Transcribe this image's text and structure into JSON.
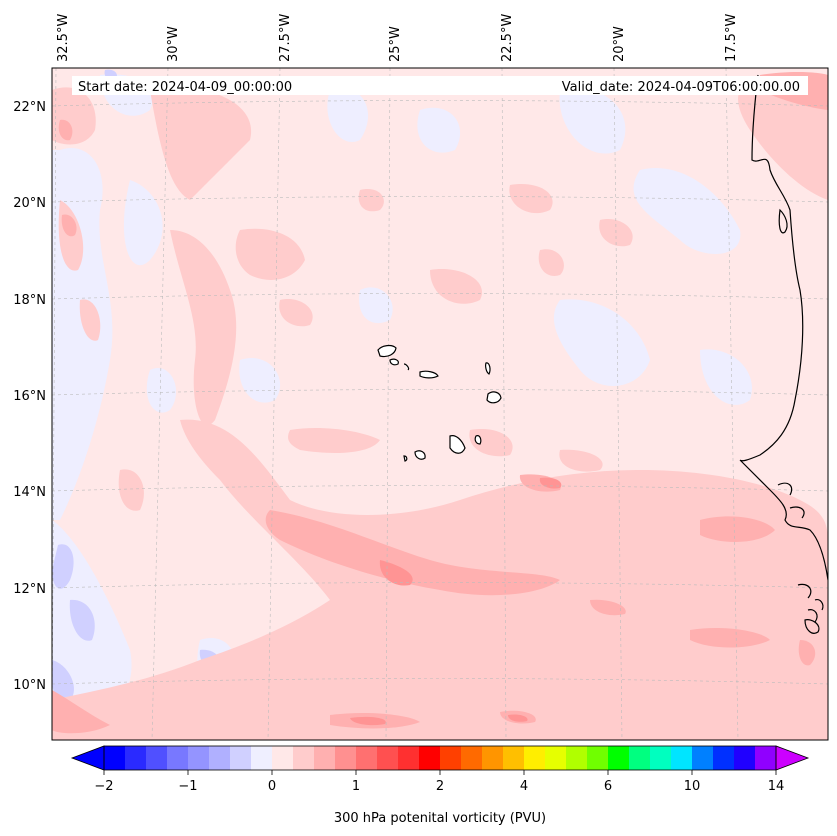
{
  "map": {
    "start_label": "Start date: 2024-04-09_00:00:00",
    "valid_label": "Valid_date: 2024-04-09T06:00:00.00",
    "lon_ticks": [
      "32.5°W",
      "30°W",
      "27.5°W",
      "25°W",
      "22.5°W",
      "20°W",
      "17.5°W"
    ],
    "lat_ticks": [
      "22°N",
      "20°N",
      "18°N",
      "16°N",
      "14°N",
      "12°N",
      "10°N"
    ]
  },
  "colorbar": {
    "title": "300 hPa potenital vorticity (PVU)",
    "tick_labels": [
      "−2",
      "−1",
      "0",
      "1",
      "2",
      "4",
      "6",
      "10",
      "14"
    ],
    "colors": [
      "#0000ff",
      "#2a2aff",
      "#5050ff",
      "#7878ff",
      "#9494ff",
      "#b0b0ff",
      "#d0d0ff",
      "#efefff",
      "#ffe8e8",
      "#ffcccc",
      "#ffb0b0",
      "#ff9090",
      "#ff7070",
      "#ff5050",
      "#ff3030",
      "#ff0000",
      "#ff4000",
      "#ff6a00",
      "#ff9500",
      "#ffbf00",
      "#ffee00",
      "#e6ff00",
      "#b0ff00",
      "#70ff00",
      "#00ff00",
      "#00ff80",
      "#00ffbf",
      "#00e5ff",
      "#0080ff",
      "#0030ff",
      "#2000ff",
      "#9000ff"
    ],
    "under_color": "#0000ff",
    "over_color": "#cc00ff"
  },
  "palette": {
    "background": "#ffe8e8",
    "light_blue": "#eeeeff",
    "blue": "#d0d0ff",
    "pink": "#ffcccc",
    "red": "#ffb0b0",
    "dark_red": "#ff9494",
    "coast": "#000000"
  }
}
